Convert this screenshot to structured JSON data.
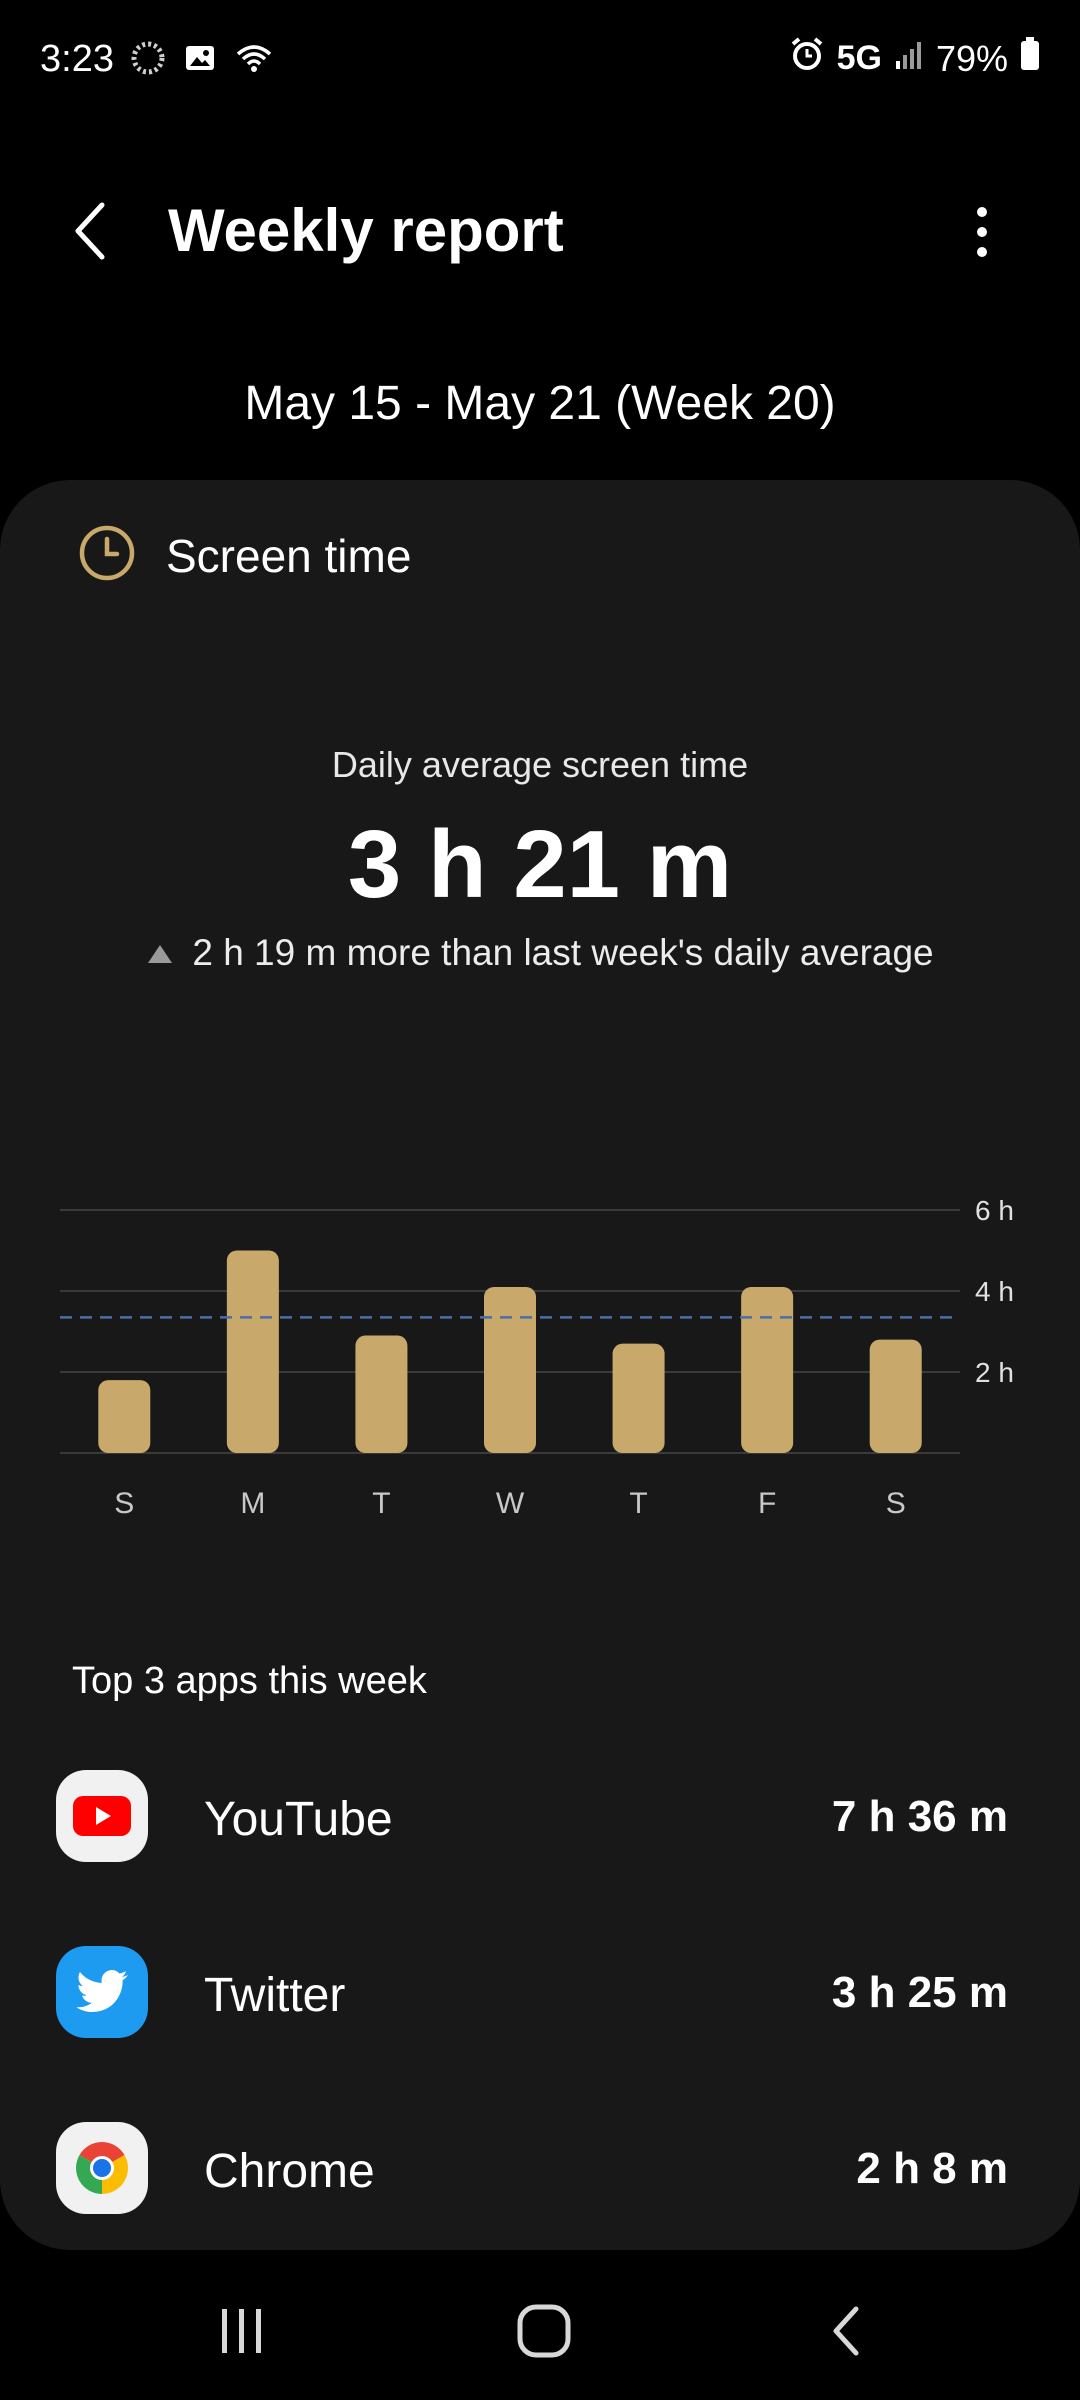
{
  "status_bar": {
    "time": "3:23",
    "network": "5G",
    "battery": "79%"
  },
  "header": {
    "title": "Weekly report"
  },
  "week_range": "May 15 - May 21 (Week 20)",
  "card": {
    "title": "Screen time",
    "avg_label": "Daily average screen time",
    "avg_value": "3 h 21 m",
    "comparison": "2 h 19 m more than last week's daily average"
  },
  "chart_data": {
    "type": "bar",
    "categories": [
      "S",
      "M",
      "T",
      "W",
      "T",
      "F",
      "S"
    ],
    "values": [
      1.8,
      5.0,
      2.9,
      4.1,
      2.7,
      4.1,
      2.8
    ],
    "ytick_labels": [
      "2 h",
      "4 h",
      "6 h"
    ],
    "yticks": [
      2,
      4,
      6
    ],
    "ylim": [
      0,
      6
    ],
    "average_line": 3.35,
    "grid": true,
    "bar_color": "#c9a96b",
    "average_line_color": "#4a6fa8"
  },
  "top_apps": {
    "heading": "Top 3 apps this week",
    "items": [
      {
        "name": "YouTube",
        "time": "7 h 36 m",
        "icon": "youtube-icon"
      },
      {
        "name": "Twitter",
        "time": "3 h 25 m",
        "icon": "twitter-icon"
      },
      {
        "name": "Chrome",
        "time": "2 h 8 m",
        "icon": "chrome-icon"
      }
    ]
  },
  "colors": {
    "accent": "#c9a96b",
    "card_bg": "#181818",
    "background": "#000000"
  }
}
